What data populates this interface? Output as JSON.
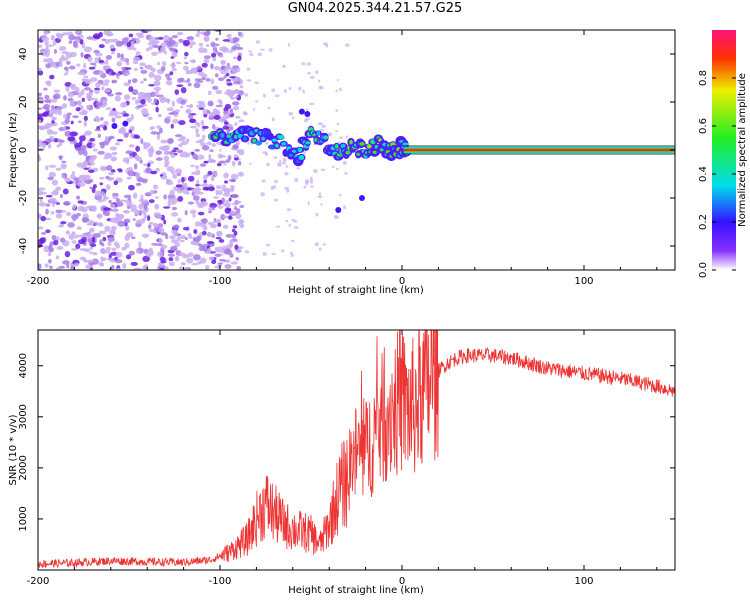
{
  "title": "GN04.2025.344.21.57.G25",
  "colors": {
    "snr_line": "#ee3333",
    "scatter_light": "#c9aef2",
    "scatter_mid": "#a77be8",
    "scatter_dark": "#6a1ee0",
    "axes": "#000000"
  },
  "chart_data": [
    {
      "type": "heatmap",
      "title": "",
      "xlabel": "Height of straight line (km)",
      "ylabel": "Frequency (Hz)",
      "xlim": [
        -200,
        150
      ],
      "ylim": [
        -50,
        50
      ],
      "x_ticks": [
        -200,
        -100,
        0,
        100
      ],
      "x_tick_labels": [
        "-200",
        "-100",
        "0",
        "100"
      ],
      "y_ticks": [
        -40,
        -20,
        0,
        20,
        40
      ],
      "y_tick_labels": [
        "-40",
        "-20",
        "0",
        "20",
        "40"
      ],
      "colorbar": {
        "label": "Normalized spectral amplitude",
        "range": [
          0,
          1
        ],
        "ticks": [
          0.0,
          0.2,
          0.4,
          0.6,
          0.8
        ],
        "tick_labels": [
          "0.0",
          "0.2",
          "0.4",
          "0.6",
          "0.8"
        ],
        "colormap": "hsv-rainbow (purple low to red high)"
      },
      "features": [
        {
          "name": "noise",
          "x_range": [
            -200,
            -100
          ],
          "freq_range": [
            -50,
            50
          ],
          "amplitude": 0.1
        },
        {
          "name": "transition",
          "x_range": [
            -100,
            -60
          ],
          "freq_range": [
            -5,
            15
          ],
          "amplitude": 0.35
        },
        {
          "name": "transition",
          "x_range": [
            -60,
            0
          ],
          "freq_range": [
            -8,
            8
          ],
          "amplitude": 0.45
        },
        {
          "name": "tone",
          "x_range": [
            0,
            150
          ],
          "freq": 0,
          "amplitude": 1.0
        }
      ],
      "ridge": {
        "x": [
          -105,
          -95,
          -85,
          -75,
          -65,
          -57,
          -50,
          -42,
          -35,
          -28,
          -20,
          -12,
          -5,
          0,
          3
        ],
        "freq": [
          7,
          4,
          6,
          5,
          2,
          -3,
          8,
          3,
          -2,
          1,
          0,
          2,
          0,
          1,
          0
        ]
      }
    },
    {
      "type": "line",
      "title": "",
      "xlabel": "Height of straight line (km)",
      "ylabel": "SNR (10 * v/v)",
      "xlim": [
        -200,
        150
      ],
      "ylim": [
        0,
        4700
      ],
      "x_ticks": [
        -200,
        -100,
        0,
        100
      ],
      "x_tick_labels": [
        "-200",
        "-100",
        "0",
        "100"
      ],
      "y_ticks": [
        1000,
        2000,
        3000,
        4000
      ],
      "y_tick_labels": [
        "1000",
        "2000",
        "3000",
        "4000"
      ],
      "series": [
        {
          "name": "SNR",
          "x": [
            -200,
            -180,
            -160,
            -140,
            -120,
            -105,
            -95,
            -85,
            -80,
            -75,
            -70,
            -65,
            -60,
            -55,
            -50,
            -45,
            -40,
            -35,
            -30,
            -25,
            -20,
            -15,
            -10,
            -5,
            0,
            5,
            10,
            15,
            20,
            25,
            30,
            35,
            40,
            50,
            60,
            80,
            100,
            120,
            140,
            150
          ],
          "values": [
            120,
            140,
            180,
            160,
            150,
            200,
            350,
            600,
            1000,
            1300,
            1100,
            900,
            800,
            750,
            700,
            500,
            900,
            1500,
            1800,
            2300,
            2300,
            2700,
            3000,
            3200,
            3300,
            3100,
            3400,
            3700,
            3900,
            4050,
            4150,
            4200,
            4200,
            4200,
            4150,
            3950,
            3850,
            3750,
            3600,
            3500
          ]
        }
      ]
    }
  ]
}
